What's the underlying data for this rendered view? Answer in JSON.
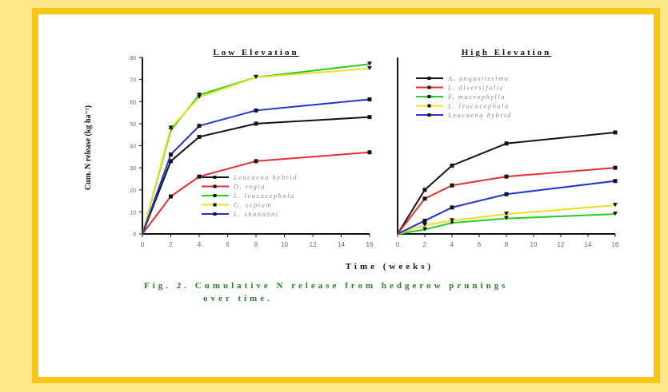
{
  "caption": {
    "line1": "Fig. 2. Cumulative N release from hedgerow prunings",
    "line2": "over time."
  },
  "x_axis_label": "Time (weeks)",
  "y_axis_label": "Cum. N release (kg ha⁻¹)",
  "colors": {
    "frame": "#f5c518",
    "black": "#111111",
    "red": "#e03030",
    "green": "#22cc22",
    "yellow": "#e8e020",
    "blue": "#2233cc",
    "caption": "#2d7a2d"
  },
  "chart_data": [
    {
      "type": "line",
      "title": "Low Elevation",
      "xlabel": "Time (weeks)",
      "ylabel": "Cum. N release (kg ha⁻¹)",
      "x": [
        0,
        2,
        4,
        8,
        16
      ],
      "xticks": [
        0,
        2,
        4,
        6,
        8,
        10,
        12,
        14,
        16
      ],
      "yticks": [
        0,
        10,
        20,
        30,
        40,
        50,
        60,
        70,
        80
      ],
      "xlim": [
        0,
        16
      ],
      "ylim": [
        0,
        80
      ],
      "legend_position": "bottom-right",
      "series": [
        {
          "name": "Leucaena hybrid",
          "color": "#111111",
          "values": [
            0,
            33,
            44,
            50,
            53
          ]
        },
        {
          "name": "D. regia",
          "color": "#e03030",
          "values": [
            0,
            17,
            26,
            33,
            37
          ]
        },
        {
          "name": "L. leucocephala",
          "color": "#22cc22",
          "values": [
            0,
            47,
            63,
            71,
            77
          ]
        },
        {
          "name": "G. sepium",
          "color": "#e8e020",
          "values": [
            0,
            48,
            62,
            71,
            75
          ]
        },
        {
          "name": "L. shannoni",
          "color": "#2233cc",
          "values": [
            0,
            36,
            49,
            56,
            61
          ]
        }
      ]
    },
    {
      "type": "line",
      "title": "High Elevation",
      "xlabel": "Time (weeks)",
      "ylabel": "",
      "x": [
        0,
        2,
        4,
        8,
        16
      ],
      "xticks": [
        0,
        2,
        4,
        6,
        8,
        10,
        12,
        14,
        16
      ],
      "xlim": [
        0,
        16
      ],
      "ylim": [
        0,
        80
      ],
      "legend_position": "top-right",
      "series": [
        {
          "name": "A. angustissima",
          "color": "#111111",
          "values": [
            0,
            20,
            31,
            41,
            46
          ]
        },
        {
          "name": "L. diversifolia",
          "color": "#e03030",
          "values": [
            0,
            16,
            22,
            26,
            30
          ]
        },
        {
          "name": "F. macrophylla",
          "color": "#22cc22",
          "values": [
            0,
            2,
            5,
            7,
            9
          ]
        },
        {
          "name": "L. leucocephala",
          "color": "#e8e020",
          "values": [
            0,
            4,
            6,
            9,
            13
          ]
        },
        {
          "name": "Leucaena hybrid",
          "color": "#2233cc",
          "values": [
            0,
            6,
            12,
            18,
            24
          ]
        }
      ]
    }
  ]
}
